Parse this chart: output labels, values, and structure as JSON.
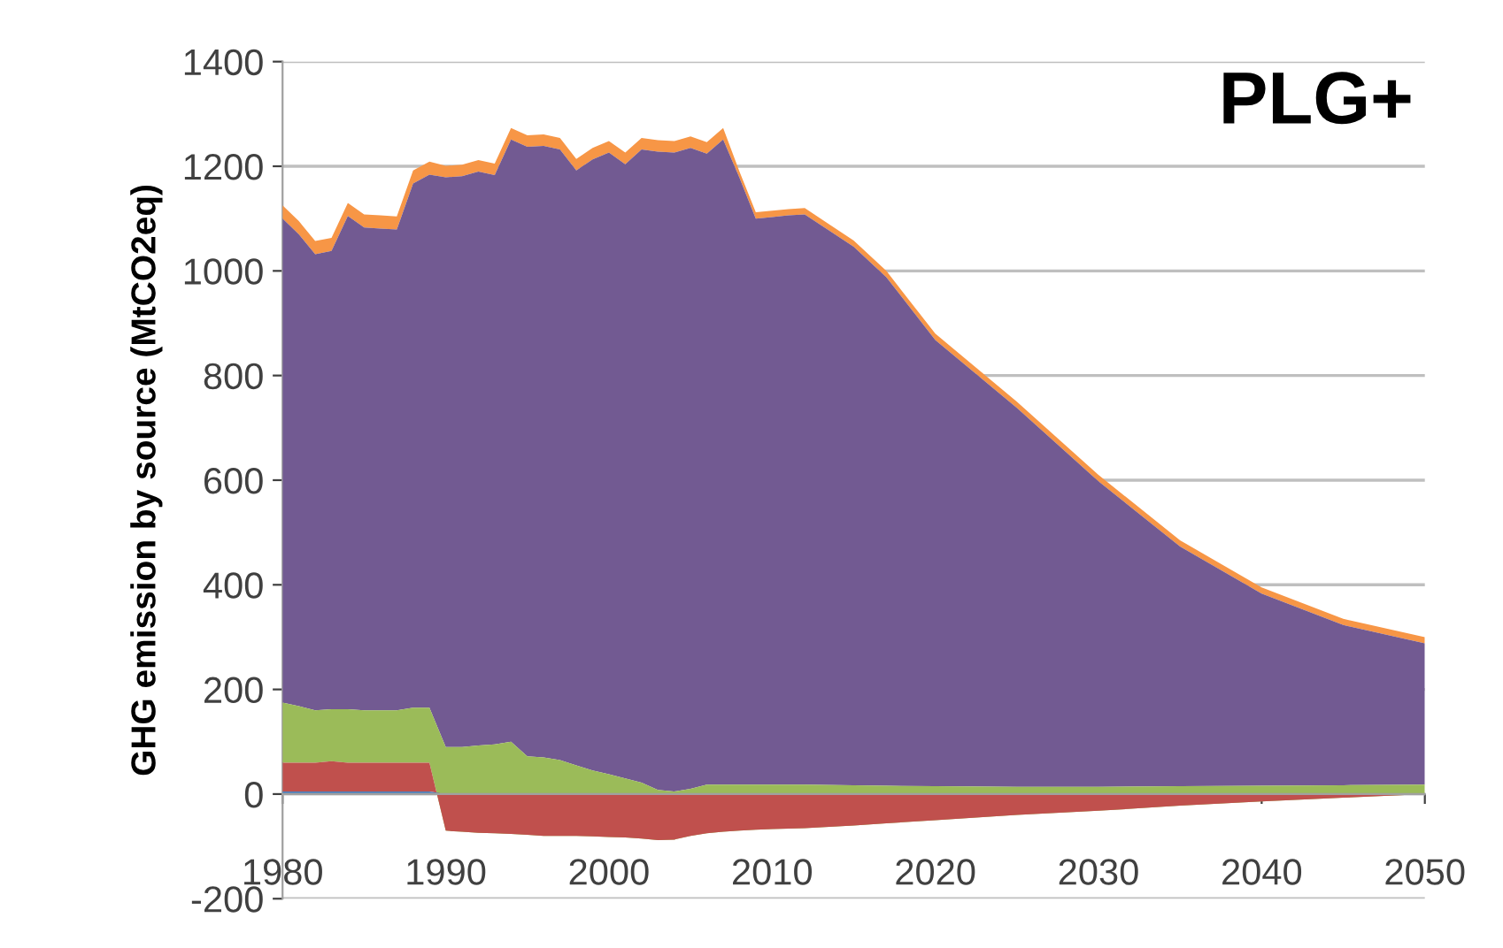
{
  "chart_data": {
    "type": "area",
    "stacked": true,
    "ylabel": "GHG emission by source (MtCO2eq)",
    "annotations": [
      "PLG+"
    ],
    "x": [
      1980,
      1981,
      1982,
      1983,
      1984,
      1985,
      1986,
      1987,
      1988,
      1989,
      1990,
      1991,
      1992,
      1993,
      1994,
      1995,
      1996,
      1997,
      1998,
      1999,
      2000,
      2001,
      2002,
      2003,
      2004,
      2005,
      2006,
      2007,
      2008,
      2009,
      2010,
      2011,
      2012,
      2015,
      2017,
      2020,
      2025,
      2030,
      2035,
      2040,
      2045,
      2050
    ],
    "series": [
      {
        "color": "#4f81bd",
        "values": [
          5,
          5,
          5,
          5,
          5,
          5,
          5,
          5,
          5,
          5,
          0,
          0,
          0,
          0,
          0,
          0,
          0,
          0,
          0,
          0,
          0,
          0,
          0,
          0,
          0,
          0,
          0,
          0,
          0,
          0,
          0,
          0,
          0,
          0,
          0,
          0,
          0,
          0,
          0,
          0,
          0,
          0
        ]
      },
      {
        "color": "#c0504d",
        "values": [
          55,
          55,
          55,
          58,
          55,
          55,
          55,
          55,
          55,
          55,
          -70,
          -72,
          -74,
          -75,
          -76,
          -78,
          -80,
          -80,
          -80,
          -81,
          -82,
          -83,
          -85,
          -88,
          -87,
          -80,
          -75,
          -72,
          -70,
          -68,
          -67,
          -66,
          -65,
          -60,
          -56,
          -50,
          -40,
          -32,
          -22,
          -14,
          -7,
          0
        ]
      },
      {
        "color": "#9bbb59",
        "values": [
          115,
          108,
          100,
          99,
          102,
          100,
          100,
          100,
          105,
          105,
          160,
          162,
          167,
          170,
          176,
          150,
          150,
          145,
          135,
          126,
          120,
          113,
          107,
          96,
          92,
          90,
          93,
          90,
          88,
          86,
          85,
          84,
          83,
          77,
          72,
          65,
          54,
          46,
          37,
          30,
          24,
          18
        ]
      },
      {
        "color": "#725a92",
        "values": [
          925,
          902,
          872,
          876,
          943,
          923,
          921,
          919,
          1002,
          1019,
          1089,
          1091,
          1097,
          1088,
          1151,
          1165,
          1169,
          1167,
          1137,
          1168,
          1188,
          1174,
          1210,
          1220,
          1221,
          1225,
          1206,
          1233,
          1160,
          1082,
          1085,
          1088,
          1090,
          1029,
          972,
          853,
          724,
          584,
          458,
          367,
          306,
          270
        ]
      },
      {
        "color": "#f79646",
        "values": [
          25,
          25,
          25,
          25,
          25,
          25,
          25,
          25,
          25,
          25,
          22,
          22,
          22,
          22,
          22,
          22,
          22,
          22,
          22,
          22,
          22,
          22,
          22,
          22,
          22,
          22,
          22,
          22,
          12,
          12,
          12,
          12,
          12,
          12,
          12,
          12,
          12,
          12,
          12,
          12,
          12,
          12
        ]
      }
    ],
    "xlim": [
      1980,
      2050
    ],
    "xticks": [
      1980,
      1990,
      2000,
      2010,
      2020,
      2030,
      2040,
      2050
    ],
    "ylim": [
      -200,
      1400
    ],
    "yticks": [
      -200,
      0,
      200,
      400,
      600,
      800,
      1000,
      1200,
      1400
    ],
    "grid": "y"
  }
}
